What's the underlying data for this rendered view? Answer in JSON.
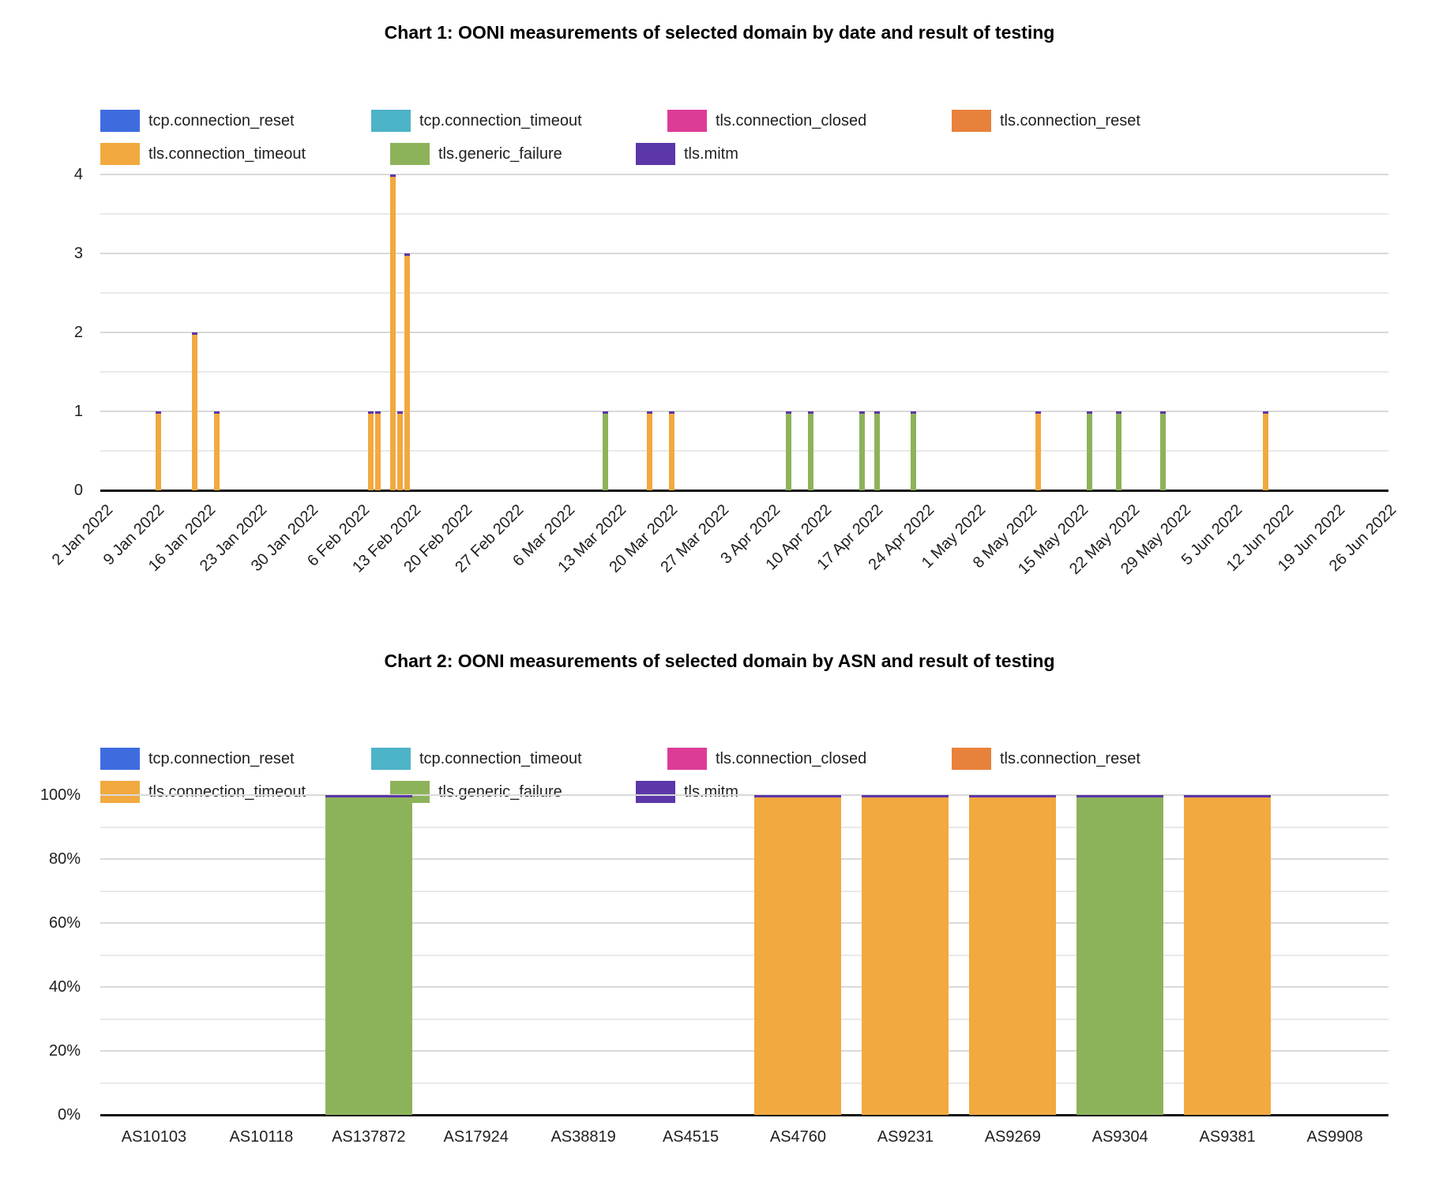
{
  "page": {
    "background": "#ffffff"
  },
  "series": [
    {
      "name": "tcp.connection_reset",
      "color": "#3E6CDF"
    },
    {
      "name": "tcp.connection_timeout",
      "color": "#4DB3C6"
    },
    {
      "name": "tls.connection_closed",
      "color": "#DD3C96"
    },
    {
      "name": "tls.connection_reset",
      "color": "#E8813C"
    },
    {
      "name": "tls.connection_timeout",
      "color": "#F2A93F"
    },
    {
      "name": "tls.generic_failure",
      "color": "#8DB35A"
    },
    {
      "name": "tls.mitm",
      "color": "#5B37A9"
    }
  ],
  "chart_data": [
    {
      "type": "bar",
      "title": "Chart 1: OONI measurements of selected domain by date and result of testing",
      "xlabel": "",
      "ylabel": "",
      "ylim": [
        0,
        4
      ],
      "yticks": [
        "0",
        "1",
        "2",
        "3",
        "4"
      ],
      "grid": "horizontal major every 1, minor every 0.5",
      "legend_position": "top",
      "x_ticks": [
        "2 Jan 2022",
        "9 Jan 2022",
        "16 Jan 2022",
        "23 Jan 2022",
        "30 Jan 2022",
        "6 Feb 2022",
        "13 Feb 2022",
        "20 Feb 2022",
        "27 Feb 2022",
        "6 Mar 2022",
        "13 Mar 2022",
        "20 Mar 2022",
        "27 Mar 2022",
        "3 Apr 2022",
        "10 Apr 2022",
        "17 Apr 2022",
        "24 Apr 2022",
        "1 May 2022",
        "8 May 2022",
        "15 May 2022",
        "22 May 2022",
        "29 May 2022",
        "5 Jun 2022",
        "12 Jun 2022",
        "19 Jun 2022",
        "26 Jun 2022"
      ],
      "mitm_cap_on_bars": true,
      "bars": [
        {
          "date": "9 Jan 2022",
          "day_offset": 7,
          "value": 1,
          "series": "tls.connection_timeout"
        },
        {
          "date": "14 Jan 2022",
          "day_offset": 12,
          "value": 2,
          "series": "tls.connection_timeout"
        },
        {
          "date": "17 Jan 2022",
          "day_offset": 15,
          "value": 1,
          "series": "tls.connection_timeout"
        },
        {
          "date": "7 Feb 2022",
          "day_offset": 36,
          "value": 1,
          "series": "tls.connection_timeout"
        },
        {
          "date": "8 Feb 2022",
          "day_offset": 37,
          "value": 1,
          "series": "tls.connection_timeout"
        },
        {
          "date": "10 Feb 2022",
          "day_offset": 39,
          "value": 4,
          "series": "tls.connection_timeout"
        },
        {
          "date": "11 Feb 2022",
          "day_offset": 40,
          "value": 1,
          "series": "tls.connection_timeout"
        },
        {
          "date": "12 Feb 2022",
          "day_offset": 41,
          "value": 3,
          "series": "tls.connection_timeout"
        },
        {
          "date": "11 Mar 2022",
          "day_offset": 68,
          "value": 1,
          "series": "tls.generic_failure"
        },
        {
          "date": "17 Mar 2022",
          "day_offset": 74,
          "value": 1,
          "series": "tls.connection_timeout"
        },
        {
          "date": "20 Mar 2022",
          "day_offset": 77,
          "value": 1,
          "series": "tls.connection_timeout"
        },
        {
          "date": "5 Apr 2022",
          "day_offset": 93,
          "value": 1,
          "series": "tls.generic_failure"
        },
        {
          "date": "8 Apr 2022",
          "day_offset": 96,
          "value": 1,
          "series": "tls.generic_failure"
        },
        {
          "date": "15 Apr 2022",
          "day_offset": 103,
          "value": 1,
          "series": "tls.generic_failure"
        },
        {
          "date": "17 Apr 2022",
          "day_offset": 105,
          "value": 1,
          "series": "tls.generic_failure"
        },
        {
          "date": "22 Apr 2022",
          "day_offset": 110,
          "value": 1,
          "series": "tls.generic_failure"
        },
        {
          "date": "9 May 2022",
          "day_offset": 127,
          "value": 1,
          "series": "tls.connection_timeout"
        },
        {
          "date": "16 May 2022",
          "day_offset": 134,
          "value": 1,
          "series": "tls.generic_failure"
        },
        {
          "date": "20 May 2022",
          "day_offset": 138,
          "value": 1,
          "series": "tls.generic_failure"
        },
        {
          "date": "26 May 2022",
          "day_offset": 144,
          "value": 1,
          "series": "tls.generic_failure"
        },
        {
          "date": "9 Jun 2022",
          "day_offset": 158,
          "value": 1,
          "series": "tls.connection_timeout"
        }
      ]
    },
    {
      "type": "stacked-bar-100",
      "title": "Chart 2: OONI measurements of selected domain by ASN and result of testing",
      "xlabel": "",
      "ylabel": "",
      "yticks": [
        "0%",
        "20%",
        "40%",
        "60%",
        "80%",
        "100%"
      ],
      "grid": "horizontal major every 20%, minor every 10%",
      "legend_position": "top",
      "categories": [
        "AS10103",
        "AS10118",
        "AS137872",
        "AS17924",
        "AS38819",
        "AS4515",
        "AS4760",
        "AS9231",
        "AS9269",
        "AS9304",
        "AS9381",
        "AS9908"
      ],
      "mitm_cap_on_bars": true,
      "values": [
        {
          "category": "AS137872",
          "series": "tls.generic_failure",
          "percent": 100
        },
        {
          "category": "AS4760",
          "series": "tls.connection_timeout",
          "percent": 100
        },
        {
          "category": "AS9231",
          "series": "tls.connection_timeout",
          "percent": 100
        },
        {
          "category": "AS9269",
          "series": "tls.connection_timeout",
          "percent": 100
        },
        {
          "category": "AS9304",
          "series": "tls.generic_failure",
          "percent": 100
        },
        {
          "category": "AS9381",
          "series": "tls.connection_timeout",
          "percent": 100
        }
      ]
    }
  ]
}
